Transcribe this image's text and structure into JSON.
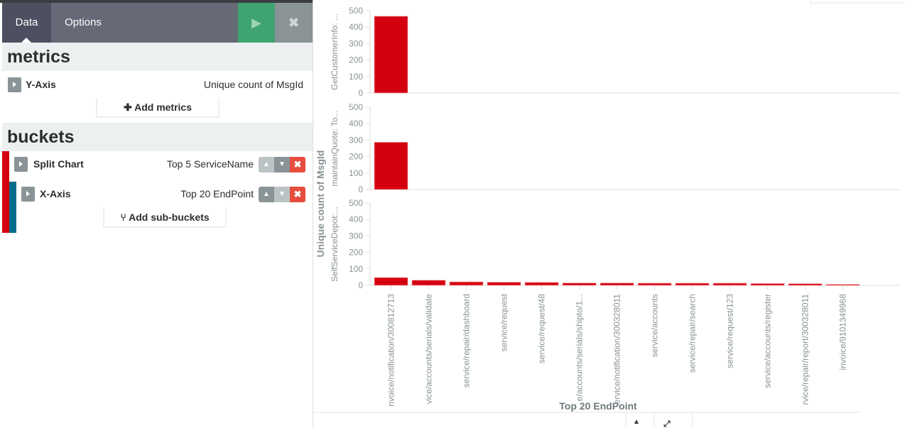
{
  "tabs": {
    "data": "Data",
    "options": "Options"
  },
  "metrics": {
    "title": "metrics",
    "yaxis_label": "Y-Axis",
    "yaxis_value": "Unique count of MsgId",
    "add": "Add metrics"
  },
  "buckets": {
    "title": "buckets",
    "split_label": "Split Chart",
    "split_value": "Top 5 ServiceName",
    "x_label": "X-Axis",
    "x_value": "Top 20 EndPoint",
    "add": "Add sub-buckets"
  },
  "colors": {
    "bar": "#d4000f",
    "split": "#d4000f",
    "xaxis": "#006e8a"
  },
  "chart_data": {
    "type": "bar",
    "ylabel": "Unique count of MsgId",
    "xlabel": "Top 20 EndPoint",
    "ylim": [
      0,
      500
    ],
    "yticks": [
      0,
      100,
      200,
      300,
      400,
      500
    ],
    "categories": [
      "nvoice/notification/300812713",
      "vice/accounts/serials/validate",
      "service/repair/dashboard",
      "service/request",
      "service/request/48",
      "e/accounts/serials/shipto/1...",
      "ervice/notification/300328011",
      "service/accounts",
      "service/repair/search",
      "service/request/123",
      "service/accounts/register",
      "rvice/repair/report/300328011",
      "invoice/9101349968"
    ],
    "series": [
      {
        "name": "GetCustomerInfo: ...",
        "values": [
          466,
          null,
          null,
          null,
          null,
          null,
          null,
          null,
          null,
          null,
          null,
          null,
          null
        ]
      },
      {
        "name": "maintainQuote: To...",
        "values": [
          287,
          null,
          null,
          null,
          null,
          null,
          null,
          null,
          null,
          null,
          null,
          null,
          null
        ]
      },
      {
        "name": "SelfServiceDepot:...",
        "values": [
          47,
          31,
          21,
          19,
          18,
          14,
          14,
          13,
          13,
          13,
          11,
          10,
          6
        ]
      }
    ]
  }
}
